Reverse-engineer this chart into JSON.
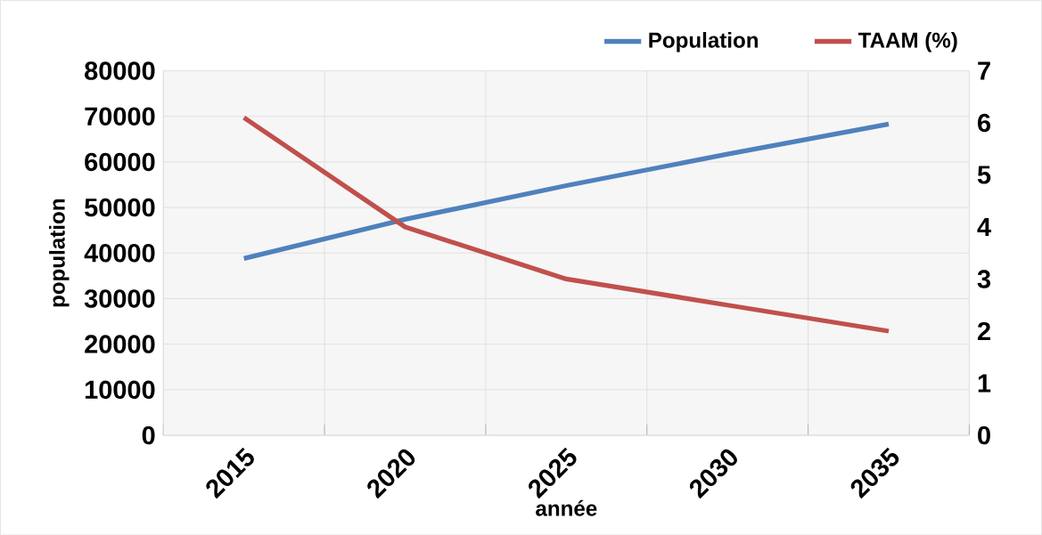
{
  "chart_data": {
    "type": "line",
    "categories": [
      "2015",
      "2020",
      "2025",
      "2030",
      "2035"
    ],
    "series": [
      {
        "name": "Population",
        "color": "#4f81bd",
        "values": [
          38800,
          47400,
          54800,
          61700,
          68300
        ]
      },
      {
        "name": "TAAM  (%)",
        "color": "#c0504d",
        "values": [
          6.1,
          4.0,
          3.0,
          2.5,
          2.0
        ],
        "axis": "y2"
      }
    ],
    "xlabel": "année",
    "ylabel": "population",
    "ylim": [
      0,
      80000
    ],
    "yticks": [
      0,
      10000,
      20000,
      30000,
      40000,
      50000,
      60000,
      70000,
      80000
    ],
    "y2lim": [
      0,
      7
    ],
    "y2ticks": [
      0,
      1,
      2,
      3,
      4,
      5,
      6,
      7
    ],
    "grid": true,
    "legend": "top right"
  }
}
